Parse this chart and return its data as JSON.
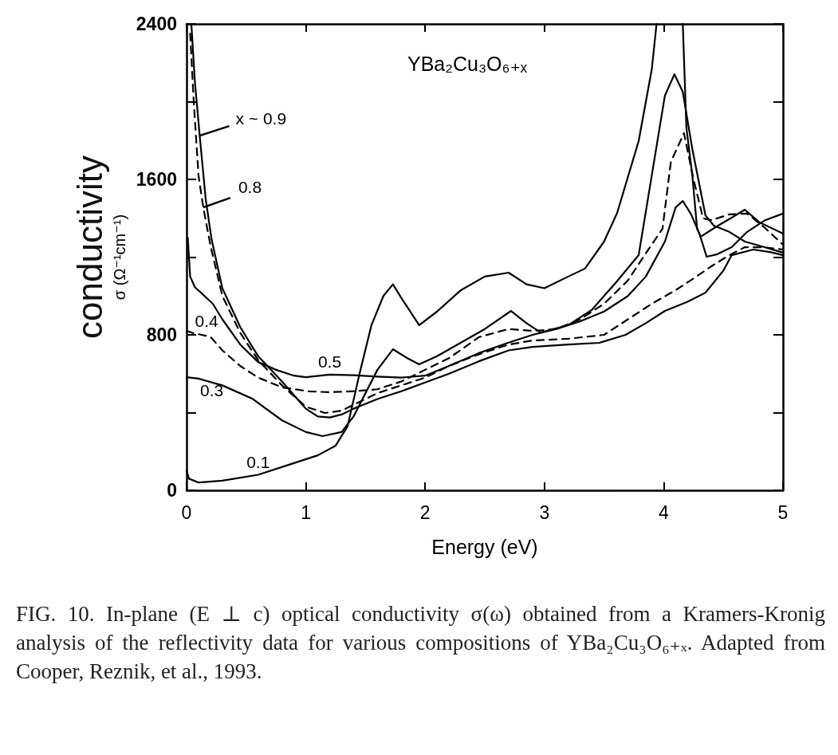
{
  "chart_data": {
    "type": "line",
    "title": "YBa₂Cu₃O₆₊ₓ",
    "xlabel": "Energy (eV)",
    "ylabel": "σ (Ω⁻¹cm⁻¹)",
    "annotations": [
      "conductivity",
      "FIG. 10. In-plane (E ⊥ c) optical conductivity σ(ω) obtained from a Kramers-Kronig analysis of the reflectivity data for various compositions of YBa₂Cu₃O₆₊ₓ. Adapted from Cooper, Reznik, et al., 1993."
    ],
    "xlim": [
      0,
      5
    ],
    "xticks": [
      0,
      1,
      2,
      3,
      4,
      5
    ],
    "ylim": [
      0,
      2400
    ],
    "yticks": [
      0,
      {
        "value": 400,
        "label": null
      },
      800,
      {
        "value": 1200,
        "label": null
      },
      1600,
      {
        "value": 2000,
        "label": null
      },
      2400
    ],
    "grid": false,
    "legend": false,
    "marker": "none",
    "series": [
      {
        "name": "x ~ 0.9",
        "color": "#000000",
        "line_style": "solid",
        "x": [
          0.04,
          0.07,
          0.11,
          0.16,
          0.21,
          0.3,
          0.45,
          0.6,
          0.8,
          1.0,
          1.1,
          1.2,
          1.3,
          1.4,
          1.6,
          1.8,
          2.0,
          2.2,
          2.45,
          2.7,
          2.9,
          3.2,
          3.46,
          3.68,
          3.85,
          4.01,
          4.2,
          4.35,
          4.5,
          4.57,
          4.75,
          4.9,
          5.0
        ],
        "values": [
          2400,
          2100,
          1825,
          1500,
          1290,
          1040,
          840,
          690,
          560,
          420,
          380,
          375,
          390,
          420,
          470,
          510,
          555,
          600,
          664,
          720,
          738,
          750,
          759,
          800,
          860,
          923,
          970,
          1017,
          1130,
          1210,
          1239,
          1225,
          1210
        ]
      },
      {
        "name": "0.8",
        "color": "#000000",
        "line_style": "dashed",
        "x": [
          0.03,
          0.06,
          0.1,
          0.14,
          0.2,
          0.3,
          0.45,
          0.6,
          0.8,
          1.0,
          1.16,
          1.3,
          1.4,
          1.6,
          1.8,
          2.0,
          2.2,
          2.45,
          2.7,
          2.9,
          3.2,
          3.5,
          3.7,
          3.9,
          4.1,
          4.25,
          4.41,
          4.55,
          4.68,
          4.85,
          5.0
        ],
        "values": [
          2350,
          2000,
          1620,
          1456,
          1260,
          1000,
          810,
          670,
          540,
          430,
          398,
          410,
          440,
          500,
          540,
          580,
          640,
          700,
          750,
          771,
          780,
          800,
          880,
          960,
          1030,
          1090,
          1157,
          1210,
          1251,
          1250,
          1239
        ]
      },
      {
        "name": "0.5",
        "color": "#000000",
        "line_style": "solid",
        "x": [
          0.01,
          0.03,
          0.07,
          0.15,
          0.22,
          0.3,
          0.45,
          0.6,
          0.75,
          0.9,
          1.0,
          1.2,
          1.4,
          1.6,
          1.8,
          2.0,
          2.2,
          2.45,
          2.7,
          2.9,
          3.1,
          3.3,
          3.5,
          3.7,
          3.85,
          4.01,
          4.1,
          4.16,
          4.23,
          4.3,
          4.36,
          4.45,
          4.57,
          4.7,
          4.85,
          5.0
        ],
        "values": [
          1300,
          1100,
          1045,
          1000,
          960,
          880,
          750,
          660,
          620,
          590,
          582,
          595,
          592,
          585,
          580,
          590,
          640,
          706,
          760,
          800,
          830,
          870,
          920,
          1000,
          1100,
          1280,
          1456,
          1489,
          1420,
          1320,
          1202,
          1215,
          1251,
          1330,
          1390,
          1424
        ]
      },
      {
        "name": "0.4",
        "color": "#000000",
        "line_style": "dashed",
        "x": [
          0.0,
          0.05,
          0.2,
          0.3,
          0.45,
          0.6,
          0.8,
          1.03,
          1.2,
          1.4,
          1.6,
          1.8,
          2.0,
          2.2,
          2.45,
          2.7,
          2.9,
          3.1,
          3.3,
          3.5,
          3.7,
          3.85,
          3.99,
          4.06,
          4.17,
          4.25,
          4.33,
          4.4,
          4.55,
          4.7,
          4.85,
          5.0
        ],
        "values": [
          820,
          810,
          790,
          720,
          640,
          580,
          530,
          509,
          505,
          510,
          520,
          560,
          620,
          680,
          788,
          830,
          820,
          830,
          880,
          960,
          1080,
          1220,
          1346,
          1690,
          1838,
          1600,
          1400,
          1390,
          1420,
          1424,
          1350,
          1264
        ]
      },
      {
        "name": "0.3",
        "color": "#000000",
        "line_style": "solid",
        "x": [
          0.0,
          0.1,
          0.3,
          0.55,
          0.8,
          1.0,
          1.14,
          1.3,
          1.4,
          1.5,
          1.6,
          1.73,
          1.85,
          1.95,
          2.1,
          2.3,
          2.5,
          2.72,
          2.85,
          2.97,
          3.2,
          3.4,
          3.6,
          3.79,
          3.9,
          4.01,
          4.09,
          4.16,
          4.24,
          4.35,
          4.42,
          4.55,
          4.68,
          4.85,
          5.0
        ],
        "values": [
          582,
          575,
          540,
          472,
          360,
          300,
          279,
          300,
          380,
          500,
          620,
          726,
          680,
          648,
          690,
          760,
          830,
          923,
          860,
          812,
          850,
          930,
          1070,
          1210,
          1620,
          2031,
          2141,
          2050,
          1756,
          1415,
          1362,
          1330,
          1280,
          1250,
          1223
        ]
      },
      {
        "name": "0.1",
        "color": "#000000",
        "line_style": "solid",
        "x": [
          0.0,
          0.02,
          0.1,
          0.3,
          0.6,
          0.9,
          1.1,
          1.25,
          1.35,
          1.45,
          1.55,
          1.65,
          1.73,
          1.8,
          1.95,
          2.1,
          2.3,
          2.5,
          2.7,
          2.85,
          3.0,
          3.2,
          3.34,
          3.5,
          3.61,
          3.79,
          3.9,
          3.94,
          4.05,
          4.16,
          4.19,
          4.24,
          4.28,
          4.31,
          4.45,
          4.57,
          4.68,
          4.8,
          5.0
        ],
        "values": [
          100,
          60,
          40,
          50,
          80,
          140,
          180,
          230,
          330,
          600,
          850,
          1000,
          1060,
          990,
          850,
          920,
          1030,
          1100,
          1120,
          1060,
          1040,
          1100,
          1141,
          1280,
          1428,
          1797,
          2166,
          2400,
          null,
          2400,
          1867,
          1620,
          1346,
          1305,
          1360,
          1403,
          1444,
          1380,
          1321
        ]
      }
    ]
  }
}
